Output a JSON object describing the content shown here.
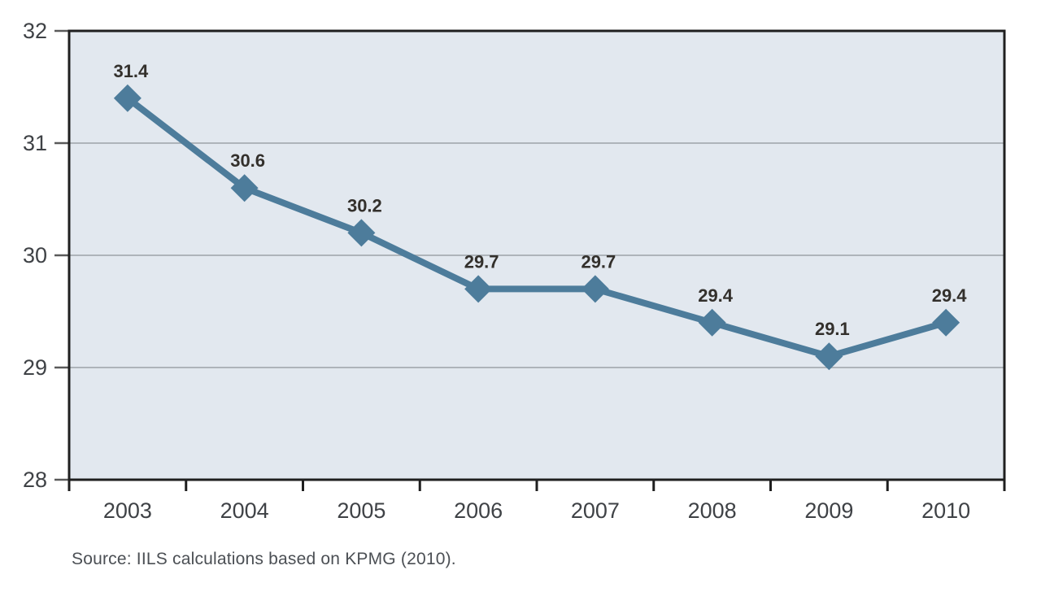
{
  "chart_data": {
    "type": "line",
    "title": "",
    "categories": [
      "2003",
      "2004",
      "2005",
      "2006",
      "2007",
      "2008",
      "2009",
      "2010"
    ],
    "values": [
      31.4,
      30.6,
      30.2,
      29.7,
      29.7,
      29.4,
      29.1,
      29.4
    ],
    "data_labels": [
      "31.4",
      "30.6",
      "30.2",
      "29.7",
      "29.7",
      "29.4",
      "29.1",
      "29.4"
    ],
    "xlabel": "",
    "ylabel": "",
    "ylim": [
      28,
      32
    ],
    "yticks": [
      28,
      29,
      30,
      31,
      32
    ],
    "grid": true,
    "legend": "none",
    "marker": "diamond"
  },
  "colors": {
    "line": "#4d7c9b",
    "marker": "#4d7c9b",
    "plot_bg": "#e2e8ef",
    "grid": "#aeb4ba",
    "border": "#1f1f1f",
    "axis_tick": "#5a5a5a",
    "axis_text": "#3f4246",
    "data_label_text": "#33302c"
  },
  "source_note": "Source: IILS calculations based on KPMG (2010)."
}
